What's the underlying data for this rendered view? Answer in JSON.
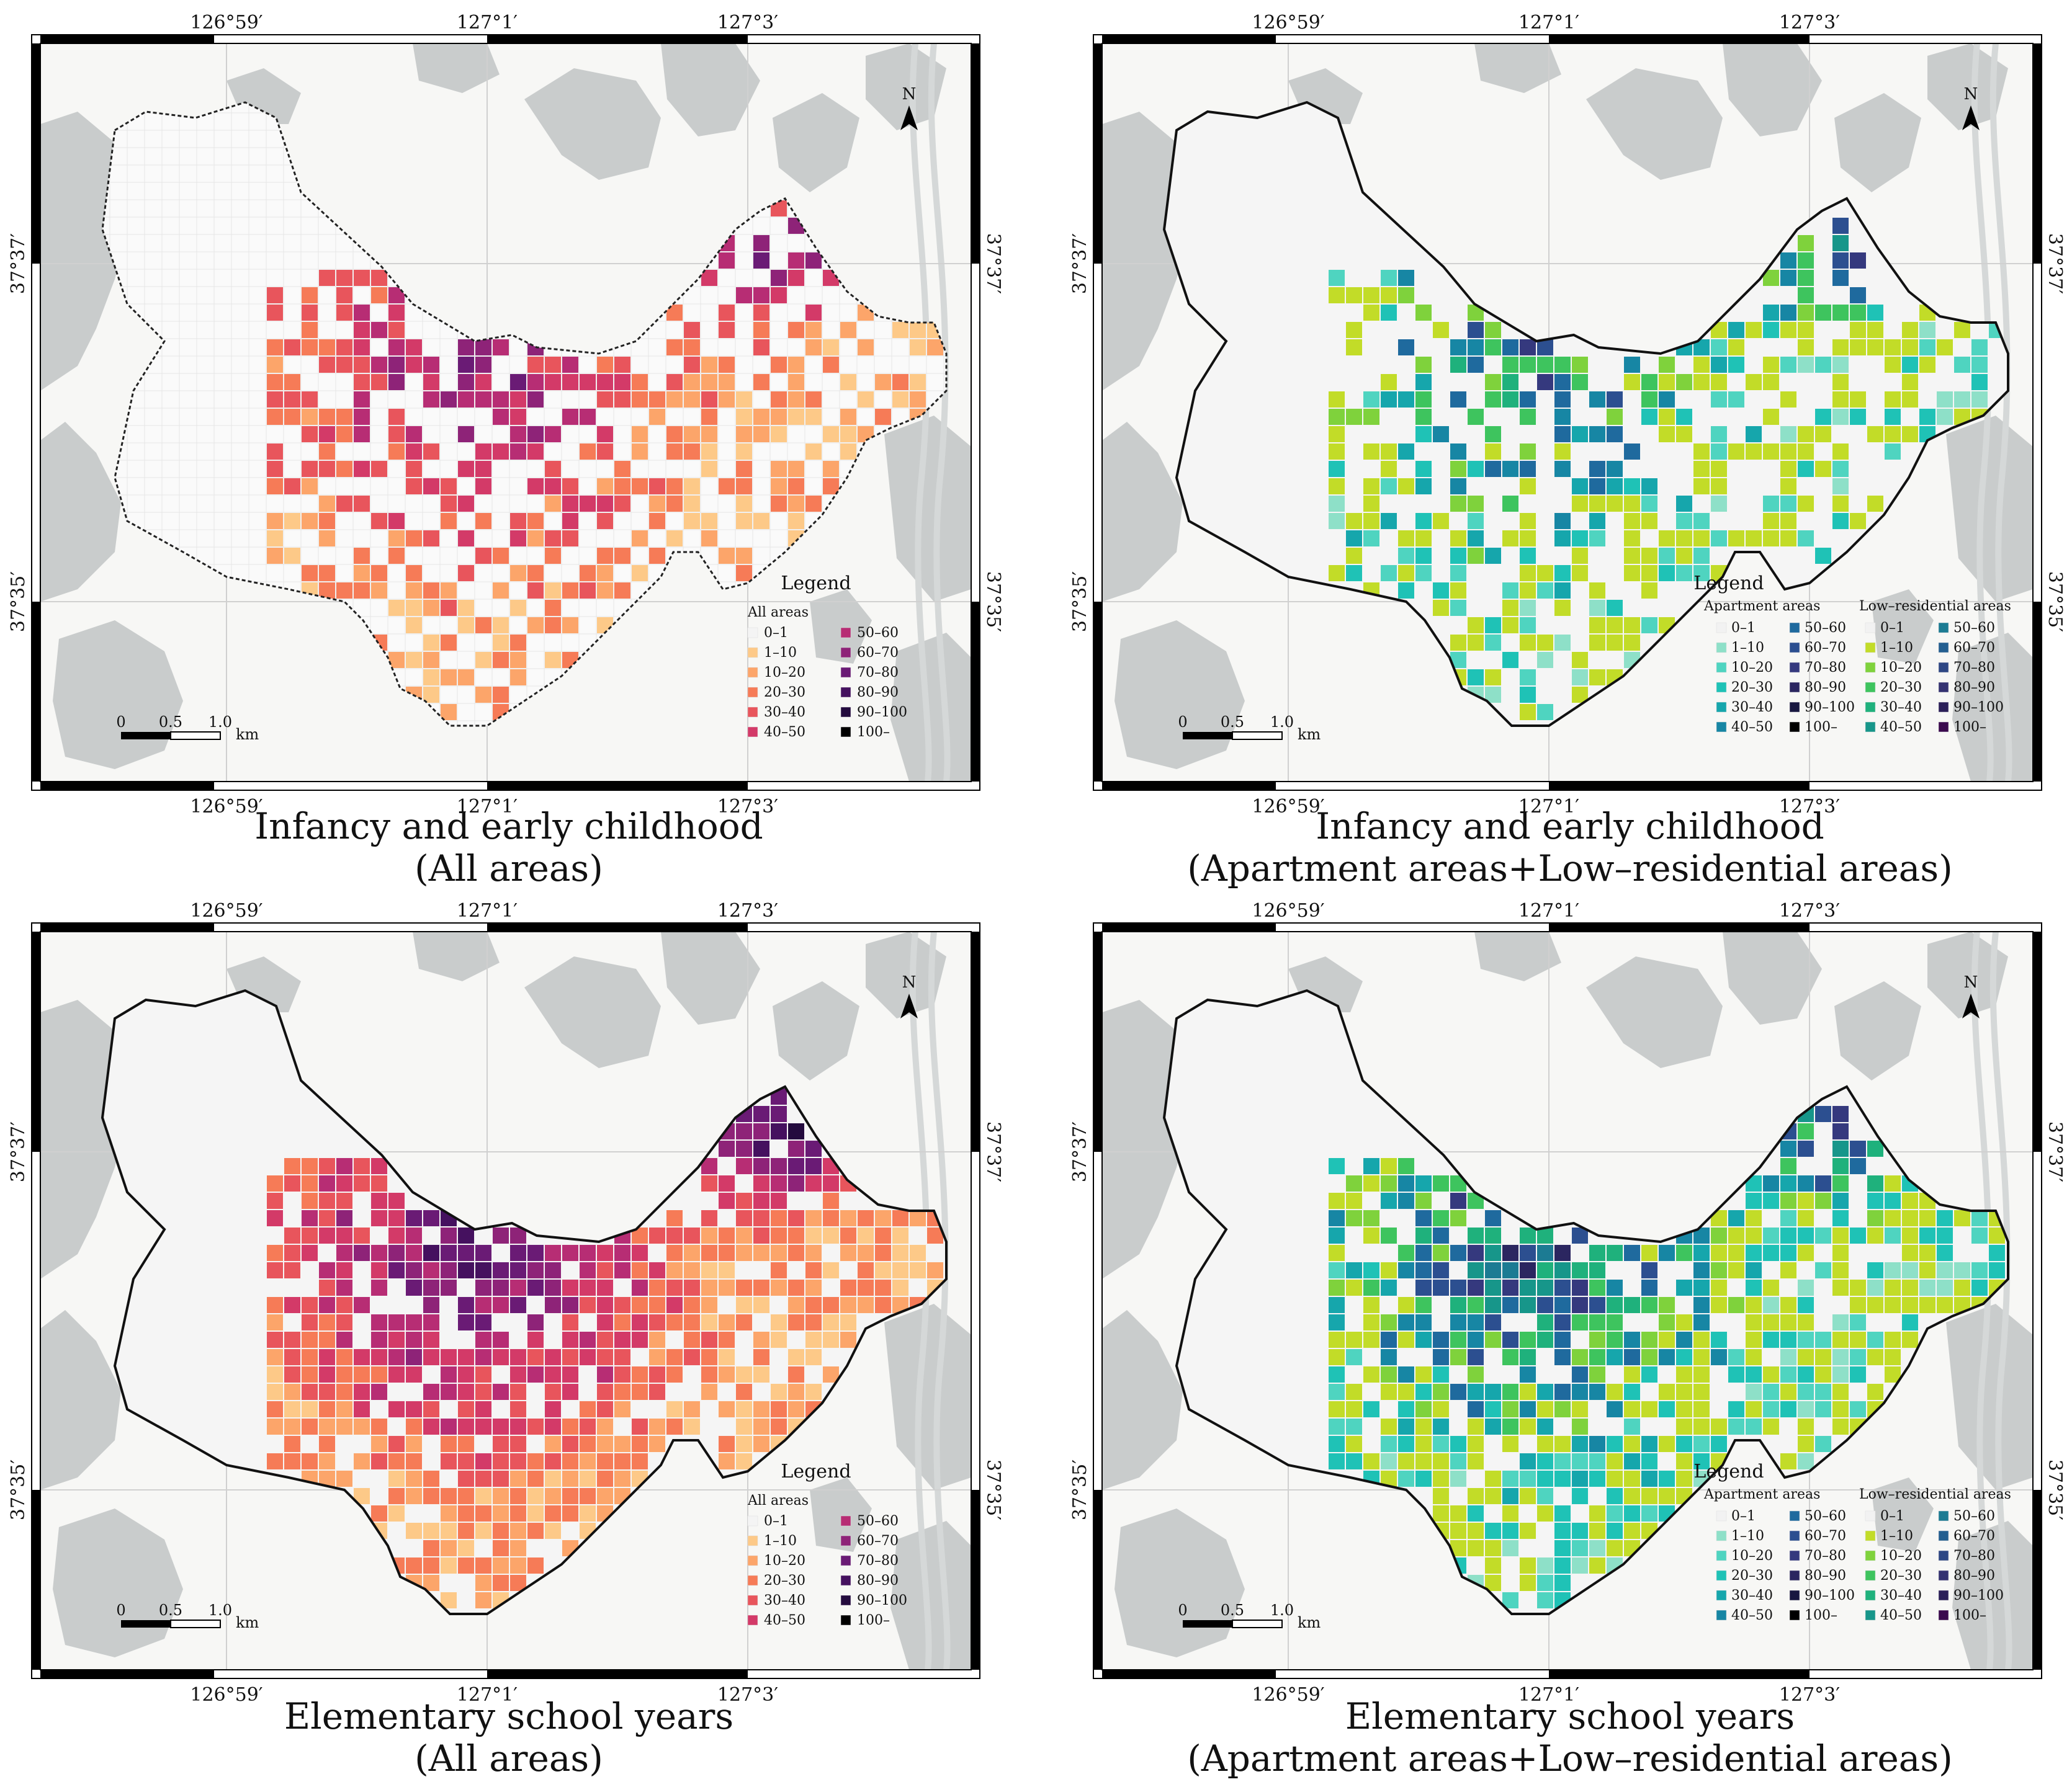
{
  "axes": {
    "top_ticks": [
      "126°59′",
      "127°1′",
      "127°3′"
    ],
    "bottom_ticks": [
      "126°59′",
      "127°1′",
      "127°3′"
    ],
    "left_ticks": [
      "37°37′",
      "37°35′"
    ],
    "right_ticks": [
      "37°37′",
      "37°35′"
    ]
  },
  "north_label": "N",
  "scalebar": {
    "ticks": [
      "0",
      "0.5",
      "1.0"
    ],
    "unit": "km"
  },
  "legend_all": {
    "title": "Legend",
    "subtitle": "All areas",
    "classes": [
      {
        "label": "0–1",
        "color": "#f4f4f4"
      },
      {
        "label": "1–10",
        "color": "#fdc988"
      },
      {
        "label": "10–20",
        "color": "#fca56a"
      },
      {
        "label": "20–30",
        "color": "#f67b57"
      },
      {
        "label": "30–40",
        "color": "#e8555c"
      },
      {
        "label": "40–50",
        "color": "#d33a68"
      },
      {
        "label": "50–60",
        "color": "#b72d74"
      },
      {
        "label": "60–70",
        "color": "#8e2378"
      },
      {
        "label": "70–80",
        "color": "#6a1b75"
      },
      {
        "label": "80–90",
        "color": "#45115f"
      },
      {
        "label": "90–100",
        "color": "#240b3e"
      },
      {
        "label": "100–",
        "color": "#000000"
      }
    ]
  },
  "legend_split": {
    "title": "Legend",
    "apartment_title": "Apartment areas",
    "low_title": "Low–residential areas",
    "apartment_classes": [
      {
        "label": "0–1",
        "color": "#f2f2f2"
      },
      {
        "label": "1–10",
        "color": "#8ee0c8"
      },
      {
        "label": "10–20",
        "color": "#4fd4c0"
      },
      {
        "label": "20–30",
        "color": "#1fc2b6"
      },
      {
        "label": "30–40",
        "color": "#16a6ac"
      },
      {
        "label": "40–50",
        "color": "#1786a4"
      },
      {
        "label": "50–60",
        "color": "#1f6a9e"
      },
      {
        "label": "60–70",
        "color": "#2c4f90"
      },
      {
        "label": "70–80",
        "color": "#35397e"
      },
      {
        "label": "80–90",
        "color": "#2b2660"
      },
      {
        "label": "90–100",
        "color": "#181740"
      },
      {
        "label": "100–",
        "color": "#000000"
      }
    ],
    "low_classes": [
      {
        "label": "0–1",
        "color": "#f2f2f2"
      },
      {
        "label": "1–10",
        "color": "#c2dc28"
      },
      {
        "label": "10–20",
        "color": "#7fd23c"
      },
      {
        "label": "20–30",
        "color": "#3ec45e"
      },
      {
        "label": "30–40",
        "color": "#1fb17c"
      },
      {
        "label": "40–50",
        "color": "#17968a"
      },
      {
        "label": "50–60",
        "color": "#1c7b93"
      },
      {
        "label": "60–70",
        "color": "#245f90"
      },
      {
        "label": "70–80",
        "color": "#2e4784"
      },
      {
        "label": "80–90",
        "color": "#343271"
      },
      {
        "label": "90–100",
        "color": "#2b1f58"
      },
      {
        "label": "100–",
        "color": "#3a0a4e"
      }
    ]
  },
  "panels": [
    {
      "id": "infancy-all",
      "type": "all",
      "district_style": "dotted",
      "caption": [
        "Infancy and early childhood",
        "(All areas)"
      ]
    },
    {
      "id": "infancy-split",
      "type": "split",
      "district_style": "solid",
      "caption": [
        "Infancy and early childhood",
        "(Apartment areas+Low–residential areas)"
      ]
    },
    {
      "id": "elementary-all",
      "type": "all",
      "district_style": "solid",
      "caption": [
        "Elementary school years",
        "(All areas)"
      ]
    },
    {
      "id": "elementary-split",
      "type": "split",
      "district_style": "solid",
      "caption": [
        "Elementary school years",
        "(Apartment areas+Low–residential areas)"
      ]
    }
  ],
  "chart_data": {
    "type": "choropleth grid maps",
    "value_classes": [
      "0–1",
      "1–10",
      "10–20",
      "20–30",
      "30–40",
      "40–50",
      "50–60",
      "60–70",
      "70–80",
      "80–90",
      "90–100",
      "100–"
    ],
    "maps": [
      {
        "title": "Infancy and early childhood",
        "subtitle": "(All areas)",
        "classification": "All areas"
      },
      {
        "title": "Infancy and early childhood",
        "subtitle": "(Apartment areas+Low–residential areas)",
        "classification": [
          "Apartment areas",
          "Low–residential areas"
        ]
      },
      {
        "title": "Elementary school years",
        "subtitle": "(All areas)",
        "classification": "All areas"
      },
      {
        "title": "Elementary school years",
        "subtitle": "(Apartment areas+Low–residential areas)",
        "classification": [
          "Apartment areas",
          "Low–residential areas"
        ]
      }
    ]
  }
}
